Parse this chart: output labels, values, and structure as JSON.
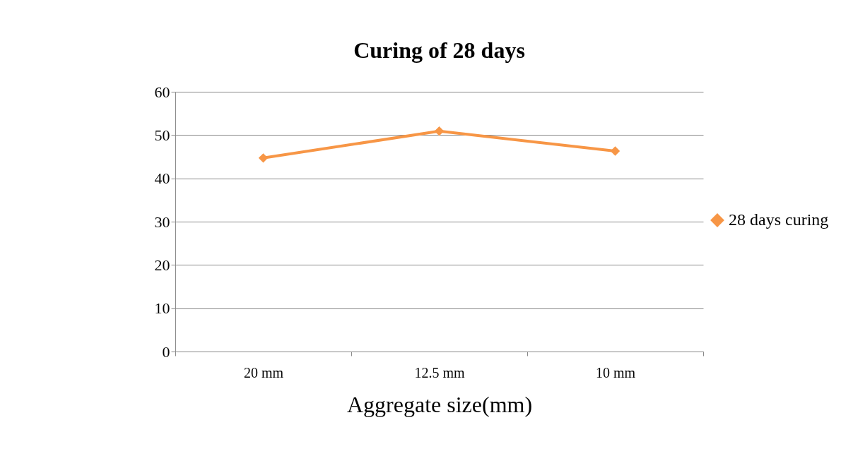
{
  "chart_data": {
    "type": "line",
    "title": "Curing of 28 days",
    "xlabel": "Aggregate size(mm)",
    "categories": [
      "20 mm",
      "12.5 mm",
      "10 mm"
    ],
    "series": [
      {
        "name": "28 days curing",
        "color": "#f79646",
        "values": [
          44.7,
          50.9,
          46.3
        ]
      }
    ],
    "ylim": [
      0,
      60
    ],
    "yticks": [
      0,
      10,
      20,
      30,
      40,
      50,
      60
    ],
    "grid": "y",
    "legend": "right",
    "marker": "diamond",
    "line_style": "solid"
  }
}
